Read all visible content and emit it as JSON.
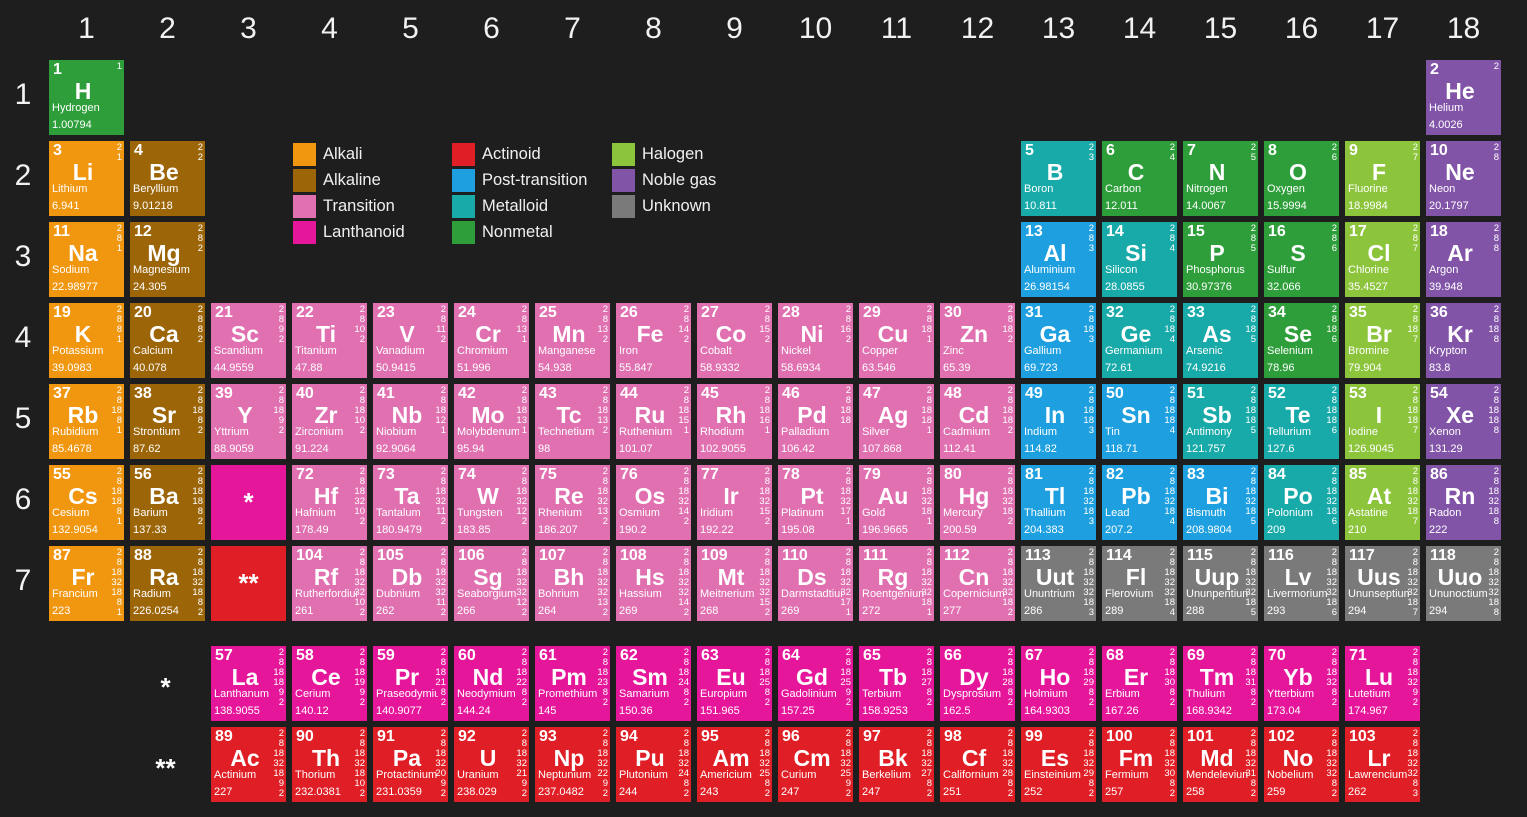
{
  "groups": [
    "1",
    "2",
    "3",
    "4",
    "5",
    "6",
    "7",
    "8",
    "9",
    "10",
    "11",
    "12",
    "13",
    "14",
    "15",
    "16",
    "17",
    "18"
  ],
  "periods": [
    "1",
    "2",
    "3",
    "4",
    "5",
    "6",
    "7"
  ],
  "series_markers": {
    "lanthanoid": "*",
    "actinoid": "**"
  },
  "colors": {
    "background": "#1e1e1e",
    "alkali": "#f0960f",
    "alkaline": "#9c6508",
    "transition": "#e070b0",
    "lanthanoid": "#e6169a",
    "actinoid": "#e01e25",
    "post": "#1ea0e0",
    "metalloid": "#18aaa8",
    "nonmetal": "#2e9e3a",
    "halogen": "#8cc43c",
    "noble": "#8254a8",
    "unknown": "#7a7a7a"
  },
  "legend": [
    {
      "key": "alkali",
      "label": "Alkali"
    },
    {
      "key": "alkaline",
      "label": "Alkaline"
    },
    {
      "key": "transition",
      "label": "Transition"
    },
    {
      "key": "lanthanoid",
      "label": "Lanthanoid"
    },
    {
      "key": "actinoid",
      "label": "Actinoid"
    },
    {
      "key": "post",
      "label": "Post-transition"
    },
    {
      "key": "metalloid",
      "label": "Metalloid"
    },
    {
      "key": "nonmetal",
      "label": "Nonmetal"
    },
    {
      "key": "halogen",
      "label": "Halogen"
    },
    {
      "key": "noble",
      "label": "Noble gas"
    },
    {
      "key": "unknown",
      "label": "Unknown"
    }
  ],
  "elements": [
    [
      "H",
      "Hydrogen",
      "1.00794",
      "1",
      "nonmetal"
    ],
    [
      "He",
      "Helium",
      "4.0026",
      "2",
      "noble"
    ],
    [
      "Li",
      "Lithium",
      "6.941",
      "2 1",
      "alkali"
    ],
    [
      "Be",
      "Beryllium",
      "9.01218",
      "2 2",
      "alkaline"
    ],
    [
      "B",
      "Boron",
      "10.811",
      "2 3",
      "metalloid"
    ],
    [
      "C",
      "Carbon",
      "12.011",
      "2 4",
      "nonmetal"
    ],
    [
      "N",
      "Nitrogen",
      "14.0067",
      "2 5",
      "nonmetal"
    ],
    [
      "O",
      "Oxygen",
      "15.9994",
      "2 6",
      "nonmetal"
    ],
    [
      "F",
      "Fluorine",
      "18.9984",
      "2 7",
      "halogen"
    ],
    [
      "Ne",
      "Neon",
      "20.1797",
      "2 8",
      "noble"
    ],
    [
      "Na",
      "Sodium",
      "22.98977",
      "2 8 1",
      "alkali"
    ],
    [
      "Mg",
      "Magnesium",
      "24.305",
      "2 8 2",
      "alkaline"
    ],
    [
      "Al",
      "Aluminium",
      "26.98154",
      "2 8 3",
      "post"
    ],
    [
      "Si",
      "Silicon",
      "28.0855",
      "2 8 4",
      "metalloid"
    ],
    [
      "P",
      "Phosphorus",
      "30.97376",
      "2 8 5",
      "nonmetal"
    ],
    [
      "S",
      "Sulfur",
      "32.066",
      "2 8 6",
      "nonmetal"
    ],
    [
      "Cl",
      "Chlorine",
      "35.4527",
      "2 8 7",
      "halogen"
    ],
    [
      "Ar",
      "Argon",
      "39.948",
      "2 8 8",
      "noble"
    ],
    [
      "K",
      "Potassium",
      "39.0983",
      "2 8 8 1",
      "alkali"
    ],
    [
      "Ca",
      "Calcium",
      "40.078",
      "2 8 8 2",
      "alkaline"
    ],
    [
      "Sc",
      "Scandium",
      "44.9559",
      "2 8 9 2",
      "transition"
    ],
    [
      "Ti",
      "Titanium",
      "47.88",
      "2 8 10 2",
      "transition"
    ],
    [
      "V",
      "Vanadium",
      "50.9415",
      "2 8 11 2",
      "transition"
    ],
    [
      "Cr",
      "Chromium",
      "51.996",
      "2 8 13 1",
      "transition"
    ],
    [
      "Mn",
      "Manganese",
      "54.938",
      "2 8 13 2",
      "transition"
    ],
    [
      "Fe",
      "Iron",
      "55.847",
      "2 8 14 2",
      "transition"
    ],
    [
      "Co",
      "Cobalt",
      "58.9332",
      "2 8 15 2",
      "transition"
    ],
    [
      "Ni",
      "Nickel",
      "58.6934",
      "2 8 16 2",
      "transition"
    ],
    [
      "Cu",
      "Copper",
      "63.546",
      "2 8 18 1",
      "transition"
    ],
    [
      "Zn",
      "Zinc",
      "65.39",
      "2 8 18 2",
      "transition"
    ],
    [
      "Ga",
      "Gallium",
      "69.723",
      "2 8 18 3",
      "post"
    ],
    [
      "Ge",
      "Germanium",
      "72.61",
      "2 8 18 4",
      "metalloid"
    ],
    [
      "As",
      "Arsenic",
      "74.9216",
      "2 8 18 5",
      "metalloid"
    ],
    [
      "Se",
      "Selenium",
      "78.96",
      "2 8 18 6",
      "nonmetal"
    ],
    [
      "Br",
      "Bromine",
      "79.904",
      "2 8 18 7",
      "halogen"
    ],
    [
      "Kr",
      "Krypton",
      "83.8",
      "2 8 18 8",
      "noble"
    ],
    [
      "Rb",
      "Rubidium",
      "85.4678",
      "2 8 18 8 1",
      "alkali"
    ],
    [
      "Sr",
      "Strontium",
      "87.62",
      "2 8 18 8 2",
      "alkaline"
    ],
    [
      "Y",
      "Yttrium",
      "88.9059",
      "2 8 18 9 2",
      "transition"
    ],
    [
      "Zr",
      "Zirconium",
      "91.224",
      "2 8 18 10 2",
      "transition"
    ],
    [
      "Nb",
      "Niobium",
      "92.9064",
      "2 8 18 12 1",
      "transition"
    ],
    [
      "Mo",
      "Molybdenum",
      "95.94",
      "2 8 18 13 1",
      "transition"
    ],
    [
      "Tc",
      "Technetium",
      "98",
      "2 8 18 13 2",
      "transition"
    ],
    [
      "Ru",
      "Ruthenium",
      "101.07",
      "2 8 18 15 1",
      "transition"
    ],
    [
      "Rh",
      "Rhodium",
      "102.9055",
      "2 8 18 16 1",
      "transition"
    ],
    [
      "Pd",
      "Palladium",
      "106.42",
      "2 8 18 18",
      "transition"
    ],
    [
      "Ag",
      "Silver",
      "107.868",
      "2 8 18 18 1",
      "transition"
    ],
    [
      "Cd",
      "Cadmium",
      "112.41",
      "2 8 18 18 2",
      "transition"
    ],
    [
      "In",
      "Indium",
      "114.82",
      "2 8 18 18 3",
      "post"
    ],
    [
      "Sn",
      "Tin",
      "118.71",
      "2 8 18 18 4",
      "post"
    ],
    [
      "Sb",
      "Antimony",
      "121.757",
      "2 8 18 18 5",
      "metalloid"
    ],
    [
      "Te",
      "Tellurium",
      "127.6",
      "2 8 18 18 6",
      "metalloid"
    ],
    [
      "I",
      "Iodine",
      "126.9045",
      "2 8 18 18 7",
      "halogen"
    ],
    [
      "Xe",
      "Xenon",
      "131.29",
      "2 8 18 18 8",
      "noble"
    ],
    [
      "Cs",
      "Cesium",
      "132.9054",
      "2 8 18 18 8 1",
      "alkali"
    ],
    [
      "Ba",
      "Barium",
      "137.33",
      "2 8 18 18 8 2",
      "alkaline"
    ],
    [
      "La",
      "Lanthanum",
      "138.9055",
      "2 8 18 18 9 2",
      "lanthanoid"
    ],
    [
      "Ce",
      "Cerium",
      "140.12",
      "2 8 18 19 9 2",
      "lanthanoid"
    ],
    [
      "Pr",
      "Praseodymium",
      "140.9077",
      "2 8 18 21 8 2",
      "lanthanoid"
    ],
    [
      "Nd",
      "Neodymium",
      "144.24",
      "2 8 18 22 8 2",
      "lanthanoid"
    ],
    [
      "Pm",
      "Promethium",
      "145",
      "2 8 18 23 8 2",
      "lanthanoid"
    ],
    [
      "Sm",
      "Samarium",
      "150.36",
      "2 8 18 24 8 2",
      "lanthanoid"
    ],
    [
      "Eu",
      "Europium",
      "151.965",
      "2 8 18 25 8 2",
      "lanthanoid"
    ],
    [
      "Gd",
      "Gadolinium",
      "157.25",
      "2 8 18 25 9 2",
      "lanthanoid"
    ],
    [
      "Tb",
      "Terbium",
      "158.9253",
      "2 8 18 27 8 2",
      "lanthanoid"
    ],
    [
      "Dy",
      "Dysprosium",
      "162.5",
      "2 8 18 28 8 2",
      "lanthanoid"
    ],
    [
      "Ho",
      "Holmium",
      "164.9303",
      "2 8 18 29 8 2",
      "lanthanoid"
    ],
    [
      "Er",
      "Erbium",
      "167.26",
      "2 8 18 30 8 2",
      "lanthanoid"
    ],
    [
      "Tm",
      "Thulium",
      "168.9342",
      "2 8 18 31 8 2",
      "lanthanoid"
    ],
    [
      "Yb",
      "Ytterbium",
      "173.04",
      "2 8 18 32 8 2",
      "lanthanoid"
    ],
    [
      "Lu",
      "Lutetium",
      "174.967",
      "2 8 18 32 9 2",
      "lanthanoid"
    ],
    [
      "Hf",
      "Hafnium",
      "178.49",
      "2 8 18 32 10 2",
      "transition"
    ],
    [
      "Ta",
      "Tantalum",
      "180.9479",
      "2 8 18 32 11 2",
      "transition"
    ],
    [
      "W",
      "Tungsten",
      "183.85",
      "2 8 18 32 12 2",
      "transition"
    ],
    [
      "Re",
      "Rhenium",
      "186.207",
      "2 8 18 32 13 2",
      "transition"
    ],
    [
      "Os",
      "Osmium",
      "190.2",
      "2 8 18 32 14 2",
      "transition"
    ],
    [
      "Ir",
      "Iridium",
      "192.22",
      "2 8 18 32 15 2",
      "transition"
    ],
    [
      "Pt",
      "Platinum",
      "195.08",
      "2 8 18 32 17 1",
      "transition"
    ],
    [
      "Au",
      "Gold",
      "196.9665",
      "2 8 18 32 18 1",
      "transition"
    ],
    [
      "Hg",
      "Mercury",
      "200.59",
      "2 8 18 32 18 2",
      "transition"
    ],
    [
      "Tl",
      "Thallium",
      "204.383",
      "2 8 18 32 18 3",
      "post"
    ],
    [
      "Pb",
      "Lead",
      "207.2",
      "2 8 18 32 18 4",
      "post"
    ],
    [
      "Bi",
      "Bismuth",
      "208.9804",
      "2 8 18 32 18 5",
      "post"
    ],
    [
      "Po",
      "Polonium",
      "209",
      "2 8 18 32 18 6",
      "metalloid"
    ],
    [
      "At",
      "Astatine",
      "210",
      "2 8 18 32 18 7",
      "halogen"
    ],
    [
      "Rn",
      "Radon",
      "222",
      "2 8 18 32 18 8",
      "noble"
    ],
    [
      "Fr",
      "Francium",
      "223",
      "2 8 18 32 18 8 1",
      "alkali"
    ],
    [
      "Ra",
      "Radium",
      "226.0254",
      "2 8 18 32 18 8 2",
      "alkaline"
    ],
    [
      "Ac",
      "Actinium",
      "227",
      "2 8 18 32 18 9 2",
      "actinoid"
    ],
    [
      "Th",
      "Thorium",
      "232.0381",
      "2 8 18 32 18 10 2",
      "actinoid"
    ],
    [
      "Pa",
      "Protactinium",
      "231.0359",
      "2 8 18 32 20 9 2",
      "actinoid"
    ],
    [
      "U",
      "Uranium",
      "238.029",
      "2 8 18 32 21 9 2",
      "actinoid"
    ],
    [
      "Np",
      "Neptunium",
      "237.0482",
      "2 8 18 32 22 9 2",
      "actinoid"
    ],
    [
      "Pu",
      "Plutonium",
      "244",
      "2 8 18 32 24 8 2",
      "actinoid"
    ],
    [
      "Am",
      "Americium",
      "243",
      "2 8 18 32 25 8 2",
      "actinoid"
    ],
    [
      "Cm",
      "Curium",
      "247",
      "2 8 18 32 25 9 2",
      "actinoid"
    ],
    [
      "Bk",
      "Berkelium",
      "247",
      "2 8 18 32 27 8 2",
      "actinoid"
    ],
    [
      "Cf",
      "Californium",
      "251",
      "2 8 18 32 28 8 2",
      "actinoid"
    ],
    [
      "Es",
      "Einsteinium",
      "252",
      "2 8 18 32 29 8 2",
      "actinoid"
    ],
    [
      "Fm",
      "Fermium",
      "257",
      "2 8 18 32 30 8 2",
      "actinoid"
    ],
    [
      "Md",
      "Mendelevium",
      "258",
      "2 8 18 32 31 8 2",
      "actinoid"
    ],
    [
      "No",
      "Nobelium",
      "259",
      "2 8 18 32 32 8 2",
      "actinoid"
    ],
    [
      "Lr",
      "Lawrencium",
      "262",
      "2 8 18 32 32 8 3",
      "actinoid"
    ],
    [
      "Rf",
      "Rutherfordium",
      "261",
      "2 8 18 32 32 10 2",
      "transition"
    ],
    [
      "Db",
      "Dubnium",
      "262",
      "2 8 18 32 32 11 2",
      "transition"
    ],
    [
      "Sg",
      "Seaborgium",
      "266",
      "2 8 18 32 32 12 2",
      "transition"
    ],
    [
      "Bh",
      "Bohrium",
      "264",
      "2 8 18 32 32 13 2",
      "transition"
    ],
    [
      "Hs",
      "Hassium",
      "269",
      "2 8 18 32 32 14 2",
      "transition"
    ],
    [
      "Mt",
      "Meitnerium",
      "268",
      "2 8 18 32 32 15 2",
      "transition"
    ],
    [
      "Ds",
      "Darmstadtium",
      "269",
      "2 8 18 32 32 17 1",
      "transition"
    ],
    [
      "Rg",
      "Roentgenium",
      "272",
      "2 8 18 32 32 18 1",
      "transition"
    ],
    [
      "Cn",
      "Copernicium",
      "277",
      "2 8 18 32 32 18 2",
      "transition"
    ],
    [
      "Uut",
      "Ununtrium",
      "286",
      "2 8 18 32 32 18 3",
      "unknown"
    ],
    [
      "Fl",
      "Flerovium",
      "289",
      "2 8 18 32 32 18 4",
      "unknown"
    ],
    [
      "Uup",
      "Ununpentium",
      "288",
      "2 8 18 32 32 18 5",
      "unknown"
    ],
    [
      "Lv",
      "Livermorium",
      "293",
      "2 8 18 32 32 18 6",
      "unknown"
    ],
    [
      "Uus",
      "Ununseptium",
      "294",
      "2 8 18 32 32 18 7",
      "unknown"
    ],
    [
      "Uuo",
      "Ununoctium",
      "294",
      "2 8 18 32 32 18 8",
      "unknown"
    ]
  ]
}
